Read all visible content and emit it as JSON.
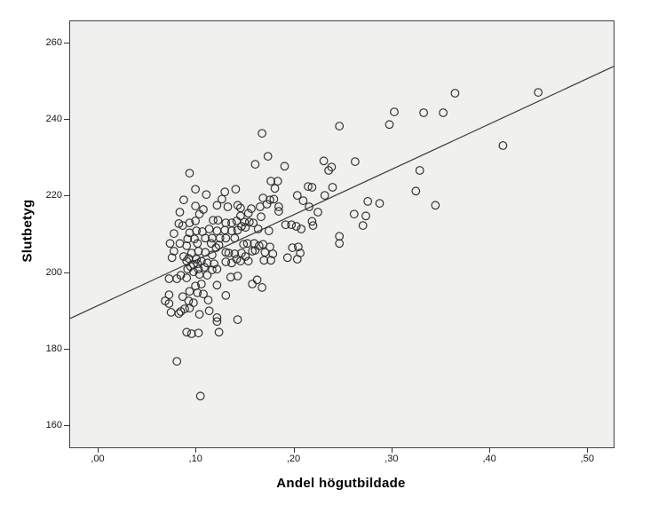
{
  "figure": {
    "background": "#ffffff",
    "plot_background": "#f0f0ee",
    "frame_color": "#404040",
    "marker_color": "#2d2d2d",
    "marker_radius": 4.3,
    "marker_stroke_width": 1.15,
    "trend_color": "#3a3a3a",
    "tick_color": "#333333"
  },
  "chart_data": {
    "type": "scatter",
    "title": "",
    "xlabel": "Andel högutbildade",
    "ylabel": "Slutbetyg",
    "xlim": [
      -0.029,
      0.526
    ],
    "ylim": [
      154.4,
      265.8
    ],
    "grid": false,
    "legend": null,
    "x_ticks": [
      {
        "value": 0.0,
        "label": ",00"
      },
      {
        "value": 0.1,
        "label": ",10"
      },
      {
        "value": 0.2,
        "label": ",20"
      },
      {
        "value": 0.3,
        "label": ",30"
      },
      {
        "value": 0.4,
        "label": ",40"
      },
      {
        "value": 0.5,
        "label": ",50"
      }
    ],
    "y_ticks": [
      {
        "value": 160,
        "label": "160"
      },
      {
        "value": 180,
        "label": "180"
      },
      {
        "value": 200,
        "label": "200"
      },
      {
        "value": 220,
        "label": "220"
      },
      {
        "value": 240,
        "label": "240"
      },
      {
        "value": 260,
        "label": "260"
      }
    ],
    "trend_line": {
      "x1": -0.029,
      "y1": 188.1,
      "x2": 0.526,
      "y2": 254.0
    },
    "points": [
      [
        0.093,
        226.1
      ],
      [
        0.099,
        221.9
      ],
      [
        0.11,
        220.5
      ],
      [
        0.087,
        219.1
      ],
      [
        0.099,
        217.5
      ],
      [
        0.083,
        215.9
      ],
      [
        0.129,
        221.2
      ],
      [
        0.126,
        219.3
      ],
      [
        0.14,
        221.9
      ],
      [
        0.142,
        217.7
      ],
      [
        0.132,
        217.3
      ],
      [
        0.121,
        217.7
      ],
      [
        0.107,
        216.6
      ],
      [
        0.103,
        215.4
      ],
      [
        0.082,
        212.9
      ],
      [
        0.086,
        212.4
      ],
      [
        0.093,
        213.1
      ],
      [
        0.099,
        213.6
      ],
      [
        0.117,
        213.8
      ],
      [
        0.122,
        213.8
      ],
      [
        0.13,
        213.1
      ],
      [
        0.136,
        213.1
      ],
      [
        0.141,
        213.6
      ],
      [
        0.145,
        214.9
      ],
      [
        0.145,
        217.0
      ],
      [
        0.077,
        210.3
      ],
      [
        0.093,
        210.5
      ],
      [
        0.1,
        211.0
      ],
      [
        0.106,
        210.8
      ],
      [
        0.113,
        211.5
      ],
      [
        0.121,
        211.0
      ],
      [
        0.129,
        211.2
      ],
      [
        0.136,
        211.0
      ],
      [
        0.142,
        211.2
      ],
      [
        0.091,
        208.9
      ],
      [
        0.098,
        208.9
      ],
      [
        0.109,
        209.1
      ],
      [
        0.116,
        209.1
      ],
      [
        0.124,
        209.1
      ],
      [
        0.13,
        209.1
      ],
      [
        0.139,
        209.1
      ],
      [
        0.073,
        207.7
      ],
      [
        0.077,
        205.7
      ],
      [
        0.075,
        204.0
      ],
      [
        0.083,
        207.7
      ],
      [
        0.09,
        207.1
      ],
      [
        0.101,
        207.7
      ],
      [
        0.102,
        205.7
      ],
      [
        0.115,
        207.7
      ],
      [
        0.12,
        206.6
      ],
      [
        0.123,
        207.3
      ],
      [
        0.13,
        205.4
      ],
      [
        0.133,
        205.2
      ],
      [
        0.139,
        205.0
      ],
      [
        0.095,
        205.2
      ],
      [
        0.109,
        205.4
      ],
      [
        0.116,
        204.7
      ],
      [
        0.09,
        203.1
      ],
      [
        0.097,
        202.2
      ],
      [
        0.102,
        201.0
      ],
      [
        0.108,
        201.5
      ],
      [
        0.091,
        201.0
      ],
      [
        0.084,
        199.4
      ],
      [
        0.09,
        198.7
      ],
      [
        0.072,
        198.5
      ],
      [
        0.08,
        198.5
      ],
      [
        0.097,
        200.3
      ],
      [
        0.103,
        199.6
      ],
      [
        0.111,
        199.4
      ],
      [
        0.116,
        200.8
      ],
      [
        0.121,
        201.0
      ],
      [
        0.13,
        202.9
      ],
      [
        0.136,
        202.6
      ],
      [
        0.141,
        203.6
      ],
      [
        0.142,
        199.2
      ],
      [
        0.135,
        198.9
      ],
      [
        0.121,
        196.8
      ],
      [
        0.099,
        196.6
      ],
      [
        0.105,
        197.1
      ],
      [
        0.093,
        195.2
      ],
      [
        0.101,
        194.8
      ],
      [
        0.107,
        194.5
      ],
      [
        0.072,
        194.3
      ],
      [
        0.068,
        192.7
      ],
      [
        0.072,
        192.0
      ],
      [
        0.086,
        193.8
      ],
      [
        0.092,
        192.7
      ],
      [
        0.097,
        192.2
      ],
      [
        0.112,
        192.9
      ],
      [
        0.13,
        194.1
      ],
      [
        0.088,
        190.6
      ],
      [
        0.093,
        190.8
      ],
      [
        0.084,
        189.9
      ],
      [
        0.082,
        189.4
      ],
      [
        0.074,
        189.7
      ],
      [
        0.103,
        189.2
      ],
      [
        0.113,
        190.1
      ],
      [
        0.121,
        188.3
      ],
      [
        0.142,
        187.8
      ],
      [
        0.16,
        228.4
      ],
      [
        0.173,
        230.5
      ],
      [
        0.19,
        227.9
      ],
      [
        0.23,
        229.3
      ],
      [
        0.235,
        226.8
      ],
      [
        0.176,
        224.0
      ],
      [
        0.183,
        224.0
      ],
      [
        0.18,
        222.1
      ],
      [
        0.214,
        222.6
      ],
      [
        0.218,
        222.4
      ],
      [
        0.203,
        220.3
      ],
      [
        0.209,
        218.9
      ],
      [
        0.168,
        219.6
      ],
      [
        0.175,
        219.1
      ],
      [
        0.179,
        219.3
      ],
      [
        0.165,
        217.3
      ],
      [
        0.172,
        218.0
      ],
      [
        0.184,
        217.3
      ],
      [
        0.184,
        216.1
      ],
      [
        0.156,
        216.8
      ],
      [
        0.153,
        215.6
      ],
      [
        0.166,
        214.7
      ],
      [
        0.149,
        213.3
      ],
      [
        0.154,
        213.3
      ],
      [
        0.158,
        213.1
      ],
      [
        0.146,
        212.2
      ],
      [
        0.15,
        211.9
      ],
      [
        0.163,
        211.5
      ],
      [
        0.174,
        211.0
      ],
      [
        0.191,
        212.6
      ],
      [
        0.197,
        212.6
      ],
      [
        0.202,
        212.2
      ],
      [
        0.207,
        211.5
      ],
      [
        0.215,
        217.3
      ],
      [
        0.224,
        215.9
      ],
      [
        0.218,
        213.5
      ],
      [
        0.219,
        212.4
      ],
      [
        0.231,
        220.3
      ],
      [
        0.148,
        207.5
      ],
      [
        0.152,
        207.7
      ],
      [
        0.159,
        207.7
      ],
      [
        0.164,
        207.1
      ],
      [
        0.168,
        207.5
      ],
      [
        0.175,
        206.8
      ],
      [
        0.157,
        205.7
      ],
      [
        0.16,
        205.9
      ],
      [
        0.17,
        205.4
      ],
      [
        0.178,
        205.0
      ],
      [
        0.146,
        205.2
      ],
      [
        0.15,
        204.3
      ],
      [
        0.145,
        203.1
      ],
      [
        0.153,
        203.1
      ],
      [
        0.169,
        203.3
      ],
      [
        0.176,
        203.3
      ],
      [
        0.193,
        204.0
      ],
      [
        0.198,
        206.6
      ],
      [
        0.204,
        206.8
      ],
      [
        0.206,
        205.2
      ],
      [
        0.203,
        203.6
      ],
      [
        0.157,
        197.1
      ],
      [
        0.162,
        198.2
      ],
      [
        0.167,
        196.2
      ],
      [
        0.121,
        187.3
      ],
      [
        0.09,
        184.5
      ],
      [
        0.095,
        184.1
      ],
      [
        0.102,
        184.3
      ],
      [
        0.123,
        184.5
      ],
      [
        0.08,
        176.9
      ],
      [
        0.104,
        167.8
      ],
      [
        0.167,
        236.5
      ],
      [
        0.246,
        238.4
      ],
      [
        0.364,
        247.0
      ],
      [
        0.449,
        247.2
      ],
      [
        0.352,
        241.9
      ],
      [
        0.302,
        242.1
      ],
      [
        0.332,
        241.9
      ],
      [
        0.297,
        238.8
      ],
      [
        0.413,
        233.3
      ],
      [
        0.262,
        229.1
      ],
      [
        0.238,
        227.7
      ],
      [
        0.328,
        226.8
      ],
      [
        0.239,
        222.4
      ],
      [
        0.324,
        221.4
      ],
      [
        0.275,
        218.7
      ],
      [
        0.287,
        218.2
      ],
      [
        0.344,
        217.7
      ],
      [
        0.261,
        215.4
      ],
      [
        0.273,
        214.9
      ],
      [
        0.27,
        212.4
      ],
      [
        0.246,
        209.6
      ],
      [
        0.246,
        207.7
      ],
      [
        0.087,
        204.3
      ],
      [
        0.092,
        203.8
      ],
      [
        0.1,
        203.6
      ],
      [
        0.105,
        203.1
      ],
      [
        0.111,
        202.6
      ],
      [
        0.118,
        202.4
      ],
      [
        0.094,
        201.7
      ],
      [
        0.101,
        202.4
      ]
    ]
  }
}
